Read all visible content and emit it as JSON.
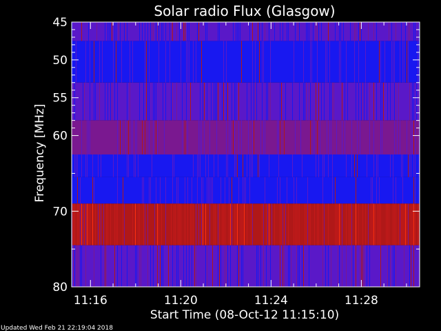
{
  "chart_data": {
    "type": "heatmap",
    "title": "Solar radio Flux (Glasgow)",
    "xlabel": "Start Time (08-Oct-12 11:15:10)",
    "ylabel": "Frequency [MHz]",
    "footer": "Updated Wed Feb 21 22:19:04 2018",
    "x_start": "11:15:10",
    "x_end": "11:30:35",
    "x_ticks": [
      "11:16",
      "11:20",
      "11:24",
      "11:28"
    ],
    "x_tick_minutes": [
      16,
      20,
      24,
      28
    ],
    "ylim": [
      45,
      80
    ],
    "y_axis_inverted": true,
    "y_ticks": [
      45,
      50,
      55,
      60,
      70,
      80
    ],
    "y_minor_ticks": [
      46,
      47,
      48,
      49,
      51,
      52,
      53,
      54,
      56,
      57,
      58,
      59,
      65,
      75
    ],
    "frequency_bands": [
      {
        "from": 45.0,
        "to": 47.5,
        "level": "medium"
      },
      {
        "from": 47.5,
        "to": 53.0,
        "level": "low"
      },
      {
        "from": 53.0,
        "to": 58.0,
        "level": "medium"
      },
      {
        "from": 58.0,
        "to": 62.5,
        "level": "medium-high"
      },
      {
        "from": 62.5,
        "to": 65.5,
        "level": "low"
      },
      {
        "from": 65.5,
        "to": 69.0,
        "level": "low"
      },
      {
        "from": 69.0,
        "to": 74.5,
        "level": "high"
      },
      {
        "from": 74.5,
        "to": 80.0,
        "level": "medium"
      }
    ],
    "colors": {
      "background": "#000000",
      "low": "#1818f0",
      "medium": "#5a18c8",
      "medium_high": "#7a1890",
      "high": "#b01818",
      "burst": "#ff3010",
      "axis": "#ffffff"
    }
  }
}
